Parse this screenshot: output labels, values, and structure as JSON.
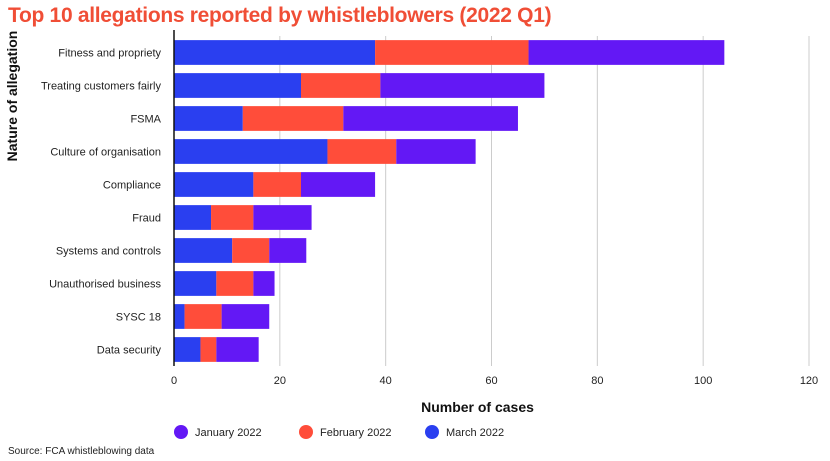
{
  "title": "Top 10 allegations reported by whistleblowers (2022 Q1)",
  "source": "Source: FCA whistleblowing data",
  "chart_data": {
    "type": "bar",
    "orientation": "horizontal",
    "stacked": true,
    "title": "Top 10 allegations reported by whistleblowers (2022 Q1)",
    "xlabel": "Number of cases",
    "ylabel": "Nature of allegation",
    "xlim": [
      0,
      120
    ],
    "xticks": [
      0,
      20,
      40,
      60,
      80,
      100,
      120
    ],
    "grid": "vertical",
    "legend_position": "bottom",
    "categories": [
      "Fitness and propriety",
      "Treating customers fairly",
      "FSMA",
      "Culture of organisation",
      "Compliance",
      "Fraud",
      "Systems and controls",
      "Unauthorised business",
      "SYSC 18",
      "Data security"
    ],
    "series": [
      {
        "name": "March 2022",
        "color": "#2a3ff0",
        "values": [
          38,
          24,
          13,
          29,
          15,
          7,
          11,
          8,
          2,
          5
        ]
      },
      {
        "name": "February 2022",
        "color": "#ff4d3a",
        "values": [
          29,
          15,
          19,
          13,
          9,
          8,
          7,
          7,
          7,
          3
        ]
      },
      {
        "name": "January 2022",
        "color": "#6318f5",
        "values": [
          37,
          31,
          33,
          15,
          14,
          11,
          7,
          4,
          9,
          8
        ]
      }
    ],
    "legend_order": [
      "January 2022",
      "February 2022",
      "March 2022"
    ]
  }
}
